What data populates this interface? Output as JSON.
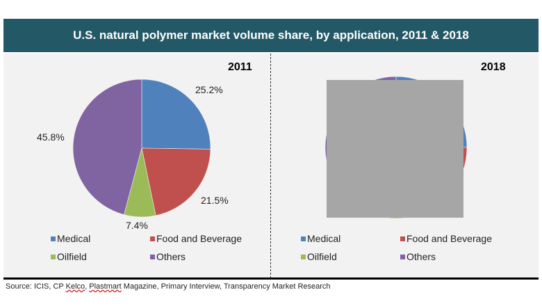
{
  "title": "U.S. natural polymer market volume share, by application, 2011 & 2018",
  "source": {
    "prefix": "Source: ICIS, CP ",
    "w1": "Kelco",
    "sep": ", ",
    "w2": "Plastmart",
    "suffix": " Magazine, Primary Interview, Transparency Market Research"
  },
  "colors": {
    "header": "#235966",
    "Medical": "#4f81bd",
    "Food and Beverage": "#c0504d",
    "Oilfield": "#9bbb59",
    "Others": "#8064a2",
    "redaction": "#a6a6a6"
  },
  "chart_data": [
    {
      "type": "pie",
      "title": "2011",
      "categories": [
        "Medical",
        "Food and Beverage",
        "Oilfield",
        "Others"
      ],
      "values": [
        25.2,
        21.5,
        7.4,
        45.8
      ],
      "labels": [
        "25.2%",
        "21.5%",
        "7.4%",
        "45.8%"
      ],
      "legend": [
        "Medical",
        "Food and Beverage",
        "Oilfield",
        "Others"
      ],
      "legend_placement": "bottom"
    },
    {
      "type": "pie",
      "title": "2018",
      "categories": [
        "Medical",
        "Food and Beverage",
        "Oilfield",
        "Others"
      ],
      "values": null,
      "note_obscured": true,
      "legend": [
        "Medical",
        "Food and Beverage",
        "Oilfield",
        "Others"
      ],
      "legend_placement": "bottom"
    }
  ]
}
